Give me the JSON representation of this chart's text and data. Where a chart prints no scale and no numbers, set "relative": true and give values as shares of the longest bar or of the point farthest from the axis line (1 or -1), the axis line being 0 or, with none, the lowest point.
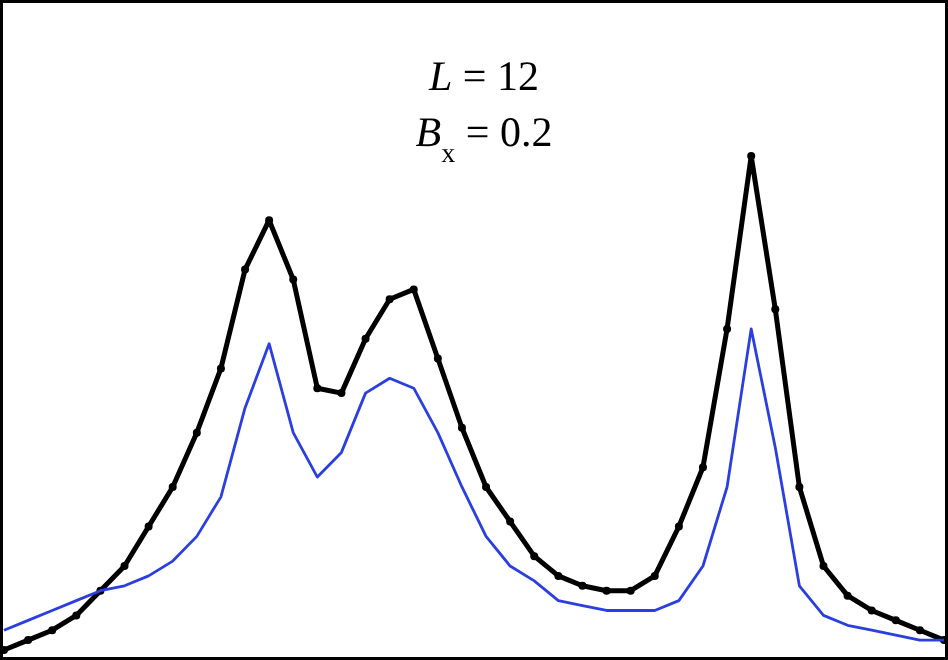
{
  "chart_data": {
    "type": "line",
    "relative": true,
    "annotations": [
      "L = 12",
      "B$_{x}$ = 0.2"
    ],
    "categories": [
      null,
      null,
      null,
      null,
      null,
      null,
      null,
      null,
      null,
      null,
      null,
      null,
      null,
      null,
      null,
      null,
      null,
      null,
      null,
      null,
      null,
      null,
      null,
      null,
      null,
      null,
      null,
      null,
      null,
      null,
      null,
      null,
      null,
      null,
      null,
      null,
      null,
      null,
      null,
      null
    ],
    "series": [
      {
        "color": "#000000",
        "marker": "circle",
        "values": [
          0,
          0.02,
          0.04,
          0.07,
          0.12,
          0.17,
          0.25,
          0.33,
          0.44,
          0.57,
          0.77,
          0.87,
          0.75,
          0.53,
          0.52,
          0.63,
          0.71,
          0.73,
          0.59,
          0.45,
          0.33,
          0.26,
          0.19,
          0.15,
          0.13,
          0.12,
          0.12,
          0.15,
          0.25,
          0.37,
          0.65,
          1,
          0.69,
          0.33,
          0.17,
          0.11,
          0.08,
          0.06,
          0.04,
          0.02
        ]
      },
      {
        "color": "#2b3fe0",
        "marker": "none",
        "values": [
          0.04,
          0.06,
          0.08,
          0.1,
          0.12,
          0.13,
          0.15,
          0.18,
          0.23,
          0.31,
          0.49,
          0.62,
          0.44,
          0.35,
          0.4,
          0.52,
          0.55,
          0.53,
          0.44,
          0.33,
          0.23,
          0.17,
          0.14,
          0.1,
          0.09,
          0.08,
          0.08,
          0.08,
          0.1,
          0.17,
          0.33,
          0.65,
          0.41,
          0.13,
          0.07,
          0.05,
          0.04,
          0.03,
          0.02,
          0.02
        ]
      }
    ]
  }
}
